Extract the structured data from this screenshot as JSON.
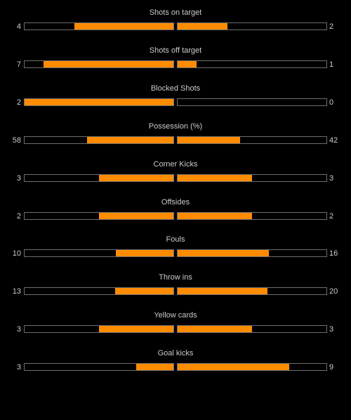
{
  "colors": {
    "background": "#000000",
    "bar_fill": "#ff8c00",
    "bar_border": "#6e6e6e",
    "text": "#cccccc"
  },
  "stats": [
    {
      "label": "Shots on target",
      "home": "4",
      "away": "2"
    },
    {
      "label": "Shots off target",
      "home": "7",
      "away": "1"
    },
    {
      "label": "Blocked Shots",
      "home": "2",
      "away": "0"
    },
    {
      "label": "Possession (%)",
      "home": "58",
      "away": "42"
    },
    {
      "label": "Corner Kicks",
      "home": "3",
      "away": "3"
    },
    {
      "label": "Offsides",
      "home": "2",
      "away": "2"
    },
    {
      "label": "Fouls",
      "home": "10",
      "away": "16"
    },
    {
      "label": "Throw ins",
      "home": "13",
      "away": "20"
    },
    {
      "label": "Yellow cards",
      "home": "3",
      "away": "3"
    },
    {
      "label": "Goal kicks",
      "home": "3",
      "away": "9"
    }
  ]
}
